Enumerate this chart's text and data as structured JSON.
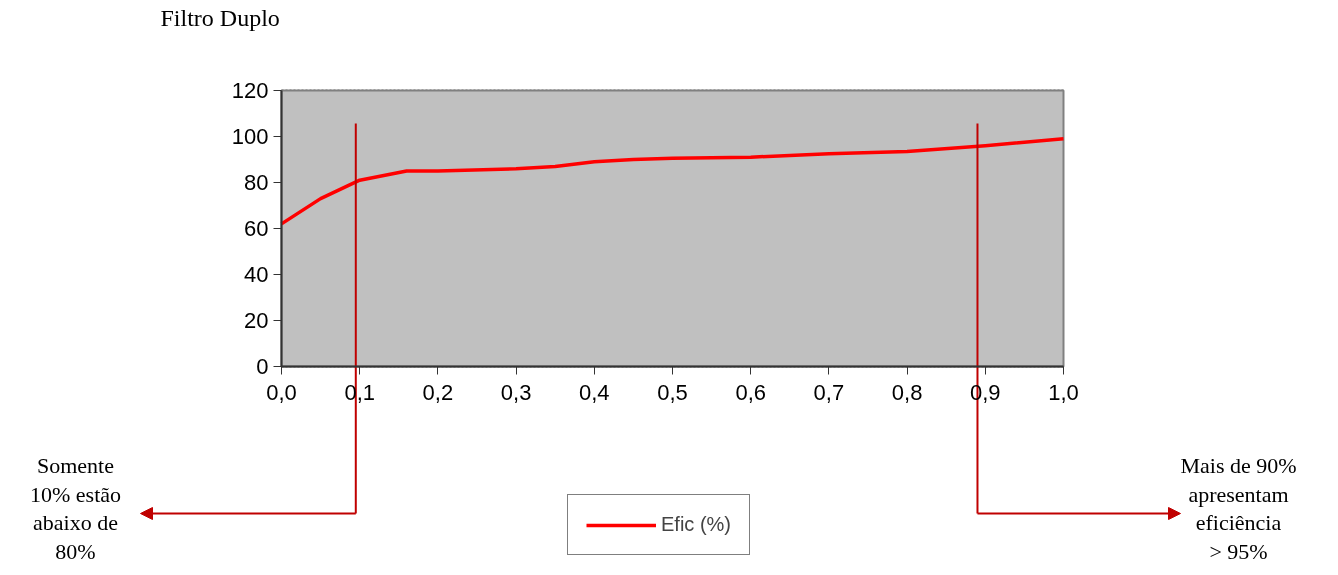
{
  "chart_data": {
    "type": "line",
    "title": "Filtro Duplo",
    "x": [
      0,
      0.05,
      0.1,
      0.16,
      0.2,
      0.3,
      0.35,
      0.4,
      0.45,
      0.5,
      0.6,
      0.7,
      0.8,
      0.9,
      1.0
    ],
    "series": [
      {
        "name": "Efic (%)",
        "color": "#ff0000",
        "values": [
          62,
          73,
          81,
          85,
          85,
          86,
          87,
          89,
          90,
          90.5,
          91,
          92.5,
          93.5,
          96,
          99
        ]
      }
    ],
    "xlim": [
      0,
      1
    ],
    "ylim": [
      0,
      120
    ],
    "xticks": [
      {
        "value": 0,
        "label": "0,0"
      },
      {
        "value": 0.1,
        "label": "0,1"
      },
      {
        "value": 0.2,
        "label": "0,2"
      },
      {
        "value": 0.3,
        "label": "0,3"
      },
      {
        "value": 0.4,
        "label": "0,4"
      },
      {
        "value": 0.5,
        "label": "0,5"
      },
      {
        "value": 0.6,
        "label": "0,6"
      },
      {
        "value": 0.7,
        "label": "0,7"
      },
      {
        "value": 0.8,
        "label": "0,8"
      },
      {
        "value": 0.9,
        "label": "0,9"
      },
      {
        "value": 1.0,
        "label": "1,0"
      }
    ],
    "yticks": [
      0,
      20,
      40,
      60,
      80,
      100,
      120
    ],
    "grid": "y",
    "legend": "bottom",
    "marker": "none",
    "line_style": "solid",
    "ref_lines": [
      {
        "axis": "x",
        "value": 0.095,
        "label": "Somente 10% estão abaixo de 80%",
        "color": "#c00000"
      },
      {
        "axis": "x",
        "value": 0.89,
        "label": "Mais de 90% apresentam eficiência > 95%",
        "color": "#c00000"
      }
    ]
  }
}
